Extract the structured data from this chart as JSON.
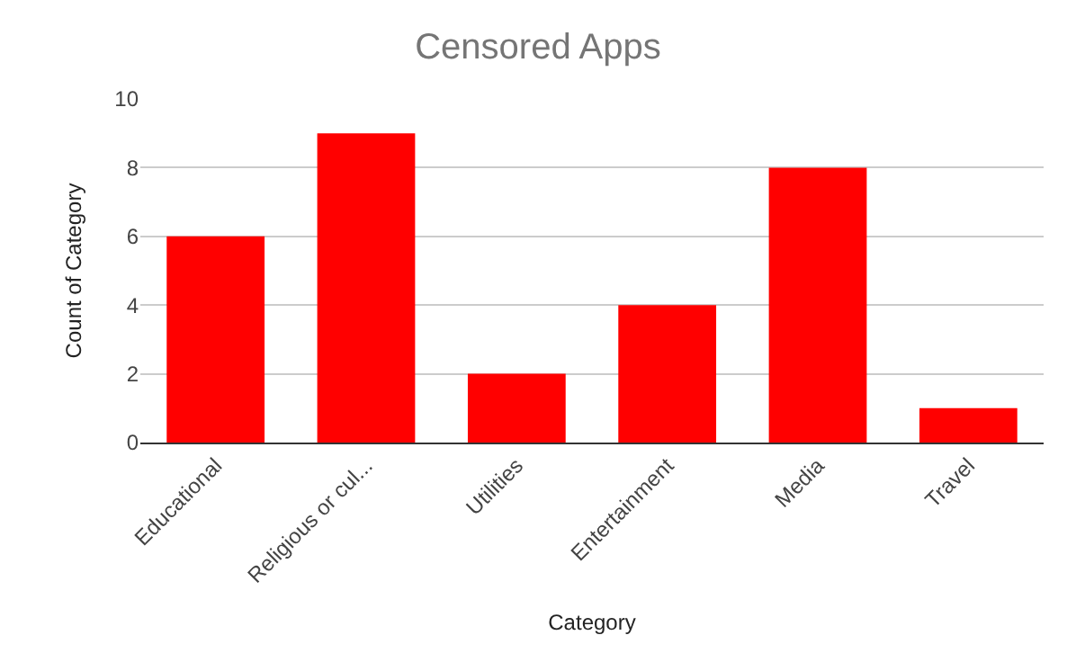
{
  "chart_data": {
    "type": "bar",
    "title": "Censored Apps",
    "xlabel": "Category",
    "ylabel": "Count of Category",
    "categories": [
      "Educational",
      "Religious or cul...",
      "Utilities",
      "Entertainment",
      "Media",
      "Travel"
    ],
    "values": [
      6,
      9,
      2,
      4,
      8,
      1
    ],
    "color": "#ff0000",
    "ylim": [
      0,
      10
    ],
    "yticks": [
      0,
      2,
      4,
      6,
      8,
      10
    ],
    "grid": "y",
    "legend": false
  }
}
